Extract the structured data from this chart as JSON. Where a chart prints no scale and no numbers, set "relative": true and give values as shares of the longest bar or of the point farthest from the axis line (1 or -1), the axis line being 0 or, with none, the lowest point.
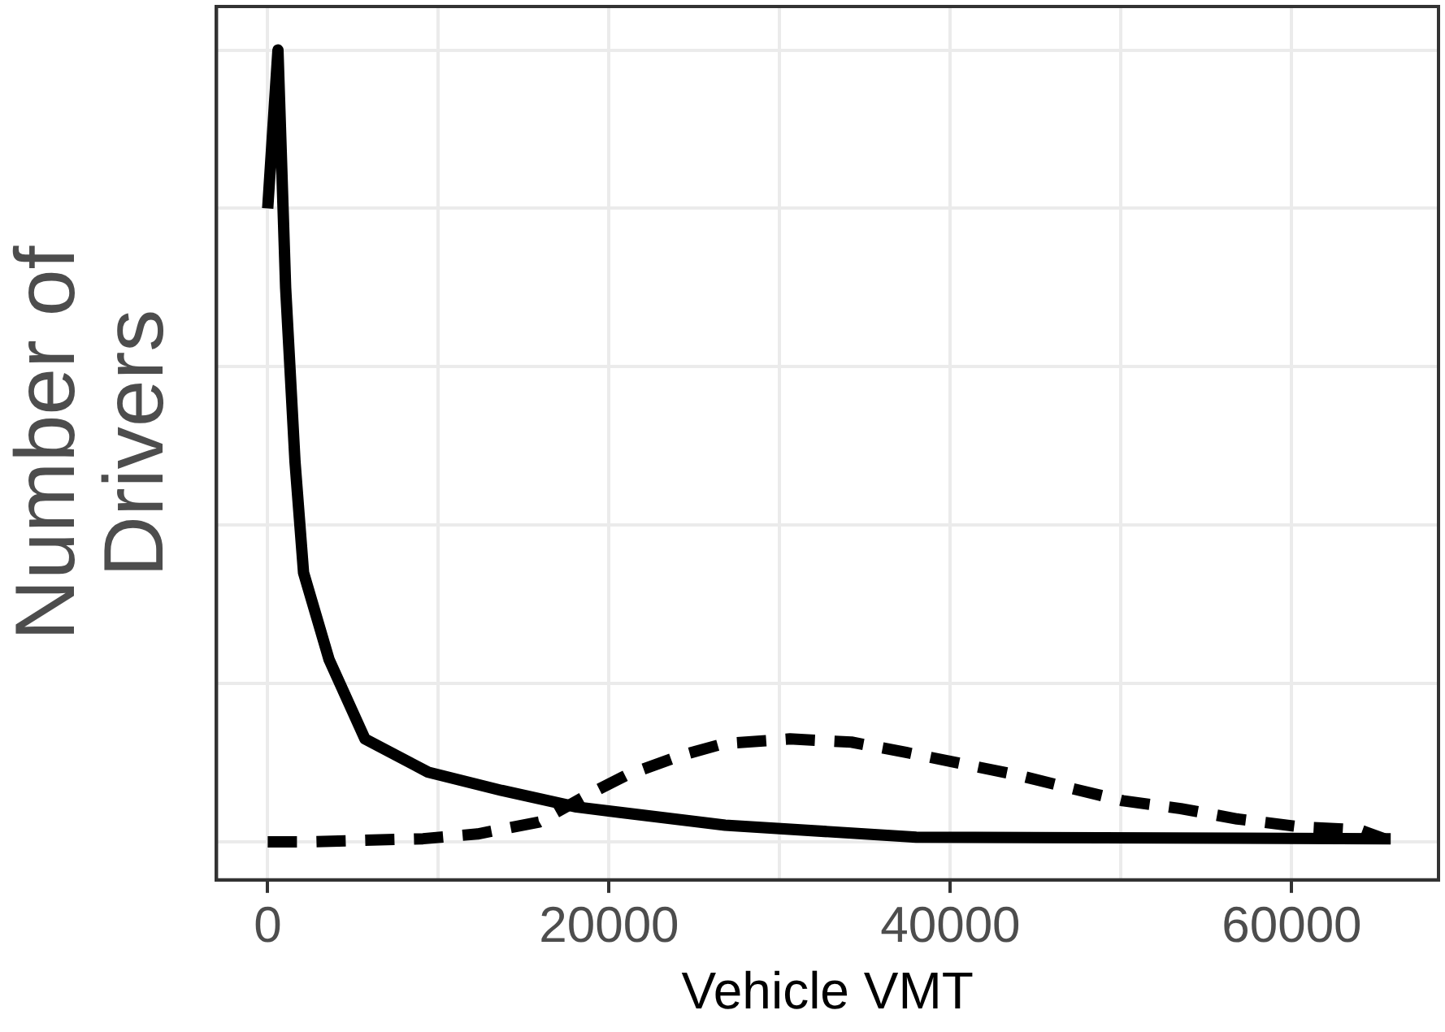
{
  "chart_data": {
    "type": "line",
    "xlabel": "Vehicle VMT",
    "ylabel": "Number of Drivers",
    "relative": true,
    "tick_labels": "x",
    "grid": true,
    "legend": false,
    "marker": "none",
    "xlim": [
      -3000,
      68600
    ],
    "xticks": [
      0,
      {
        "value": 10000,
        "label": null
      },
      20000,
      {
        "value": 30000,
        "label": null
      },
      40000,
      {
        "value": 50000,
        "label": null
      },
      60000
    ],
    "series": [
      {
        "color": "#000000",
        "line_style": "solid",
        "x": [
          0,
          600,
          1050,
          1600,
          2100,
          3600,
          5700,
          9400,
          13700,
          18100,
          26800,
          38000,
          65800
        ],
        "values": [
          0.8,
          1.0,
          0.7,
          0.48,
          0.34,
          0.23,
          0.13,
          0.088,
          0.065,
          0.044,
          0.021,
          0.006,
          0.004
        ]
      },
      {
        "color": "#000000",
        "line_style": "dashed",
        "x": [
          0,
          2400,
          9100,
          12300,
          15900,
          18800,
          21000,
          24200,
          26700,
          30600,
          34200,
          37400,
          40600,
          44000,
          47200,
          50100,
          53500,
          56800,
          60500,
          64000,
          65400
        ],
        "values": [
          0,
          0,
          0.004,
          0.01,
          0.025,
          0.06,
          0.084,
          0.109,
          0.124,
          0.13,
          0.126,
          0.113,
          0.099,
          0.084,
          0.067,
          0.052,
          0.042,
          0.029,
          0.019,
          0.015,
          0.004
        ]
      }
    ]
  }
}
